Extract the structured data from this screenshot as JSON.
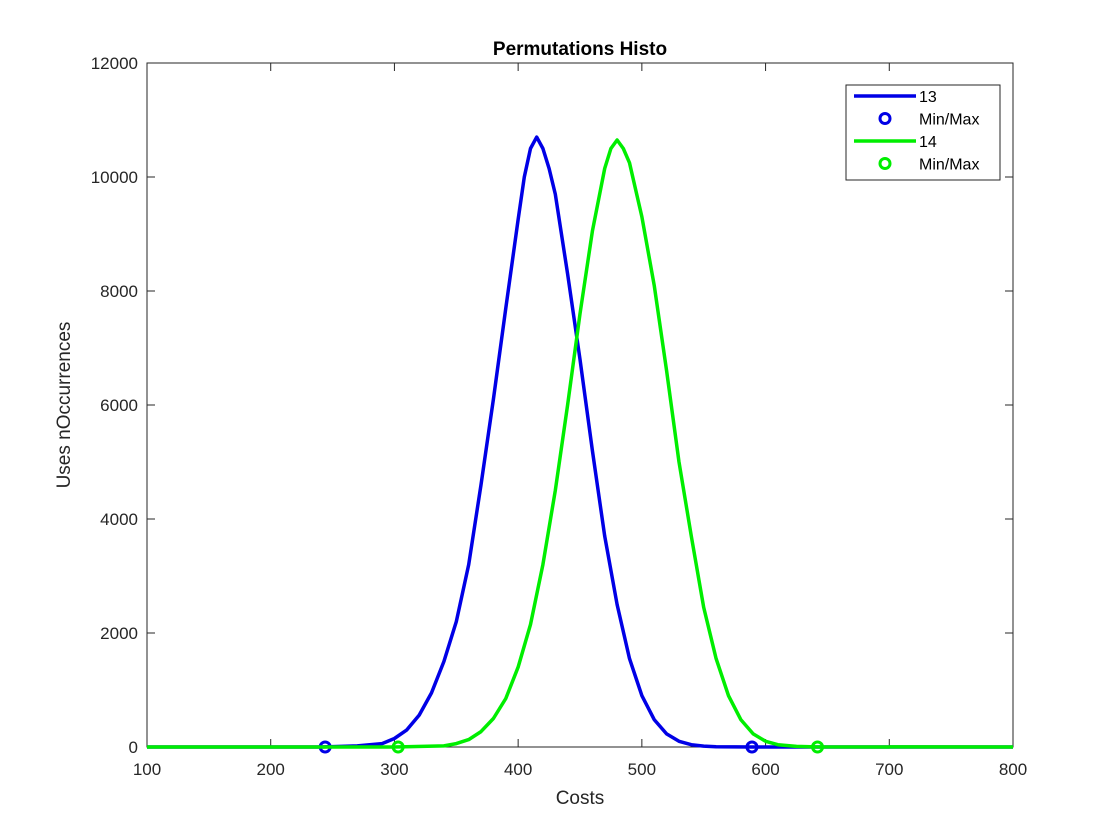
{
  "chart_data": {
    "type": "line",
    "title": "Permutations Histo",
    "xlabel": "Costs",
    "ylabel": "Uses nOccurrences",
    "xlim": [
      100,
      800
    ],
    "ylim": [
      0,
      12000
    ],
    "xticks": [
      100,
      200,
      300,
      400,
      500,
      600,
      700,
      800
    ],
    "yticks": [
      0,
      2000,
      4000,
      6000,
      8000,
      10000,
      12000
    ],
    "grid": false,
    "legend_position": "top-right",
    "series": [
      {
        "name": "13",
        "color": "#0000e6",
        "style": "line",
        "x": [
          100,
          240,
          270,
          290,
          300,
          310,
          320,
          330,
          340,
          350,
          360,
          370,
          380,
          390,
          400,
          405,
          410,
          415,
          420,
          425,
          430,
          440,
          450,
          460,
          470,
          480,
          490,
          500,
          510,
          520,
          530,
          540,
          550,
          560,
          575,
          590,
          800
        ],
        "y": [
          0,
          0,
          20,
          60,
          150,
          300,
          560,
          950,
          1500,
          2200,
          3200,
          4600,
          6100,
          7700,
          9250,
          10000,
          10500,
          10700,
          10500,
          10150,
          9700,
          8300,
          6800,
          5200,
          3700,
          2500,
          1550,
          900,
          480,
          230,
          100,
          40,
          15,
          5,
          1,
          0,
          0
        ]
      },
      {
        "name": "Min/Max",
        "color": "#0000e6",
        "style": "marker",
        "x": [
          244,
          589
        ],
        "y": [
          0,
          0
        ]
      },
      {
        "name": "14",
        "color": "#00ee00",
        "style": "line",
        "x": [
          100,
          300,
          340,
          350,
          360,
          370,
          380,
          390,
          400,
          410,
          420,
          430,
          440,
          450,
          460,
          470,
          475,
          480,
          485,
          490,
          500,
          510,
          520,
          530,
          540,
          550,
          560,
          570,
          580,
          590,
          600,
          610,
          625,
          640,
          800
        ],
        "y": [
          0,
          0,
          20,
          60,
          130,
          270,
          500,
          850,
          1400,
          2150,
          3200,
          4500,
          6000,
          7600,
          9050,
          10150,
          10500,
          10650,
          10500,
          10250,
          9300,
          8100,
          6600,
          5000,
          3700,
          2450,
          1550,
          900,
          480,
          230,
          100,
          40,
          10,
          1,
          0
        ]
      },
      {
        "name": "Min/Max",
        "color": "#00ee00",
        "style": "marker",
        "x": [
          303,
          642
        ],
        "y": [
          0,
          0
        ]
      }
    ]
  }
}
